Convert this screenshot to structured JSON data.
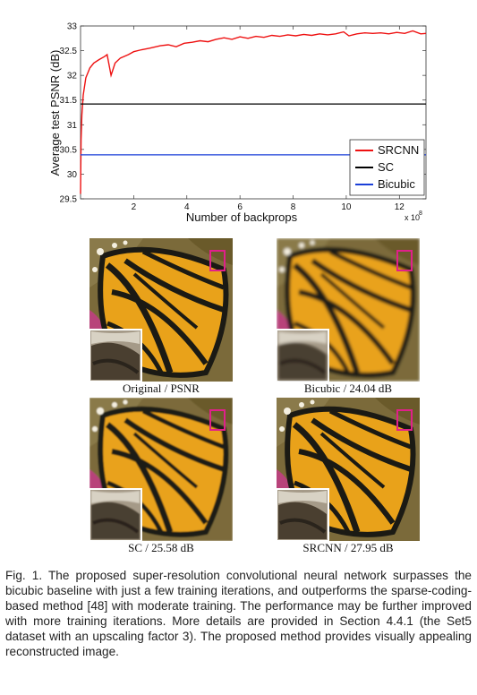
{
  "chart_data": {
    "type": "line",
    "title": "",
    "xlabel": "Number of backprops",
    "x_multiplier_label": "x 10",
    "x_multiplier_exp": "8",
    "ylabel": "Average test PSNR (dB)",
    "xlim": [
      0,
      13
    ],
    "ylim": [
      29.5,
      33
    ],
    "x_ticks": [
      "2",
      "4",
      "6",
      "8",
      "10",
      "12"
    ],
    "y_ticks": [
      "29.5",
      "30",
      "30.5",
      "31",
      "31.5",
      "32",
      "32.5",
      "33"
    ],
    "legend_position": "lower-right",
    "series": [
      {
        "name": "SRCNN",
        "color": "#ee1111",
        "x": [
          0,
          0.02,
          0.05,
          0.1,
          0.2,
          0.35,
          0.5,
          0.7,
          0.9,
          1.0,
          1.15,
          1.3,
          1.5,
          1.8,
          2.0,
          2.3,
          2.6,
          3.0,
          3.3,
          3.6,
          3.9,
          4.2,
          4.5,
          4.8,
          5.1,
          5.4,
          5.7,
          6.0,
          6.3,
          6.6,
          6.9,
          7.2,
          7.5,
          7.8,
          8.1,
          8.4,
          8.7,
          9.0,
          9.3,
          9.6,
          9.9,
          10.1,
          10.4,
          10.7,
          11.0,
          11.3,
          11.6,
          11.9,
          12.2,
          12.5,
          12.8,
          13.0
        ],
        "values": [
          29.6,
          30.7,
          31.2,
          31.6,
          31.95,
          32.15,
          32.25,
          32.32,
          32.38,
          32.42,
          32.0,
          32.25,
          32.35,
          32.42,
          32.48,
          32.52,
          32.55,
          32.6,
          32.62,
          32.58,
          32.65,
          32.67,
          32.7,
          32.68,
          32.73,
          32.76,
          32.73,
          32.78,
          32.75,
          32.79,
          32.77,
          32.81,
          32.79,
          32.82,
          32.8,
          32.83,
          32.81,
          32.84,
          32.82,
          32.84,
          32.88,
          32.8,
          32.84,
          32.86,
          32.85,
          32.86,
          32.84,
          32.87,
          32.85,
          32.9,
          32.84,
          32.85
        ]
      },
      {
        "name": "SC",
        "color": "#000000",
        "x": [
          0,
          13
        ],
        "values": [
          31.42,
          31.42
        ]
      },
      {
        "name": "Bicubic",
        "color": "#1a3fd8",
        "x": [
          0,
          13
        ],
        "values": [
          30.39,
          30.39
        ]
      }
    ]
  },
  "figures": [
    {
      "id": "original",
      "caption": "Original / PSNR",
      "sharpness": "sharp"
    },
    {
      "id": "bicubic",
      "caption": "Bicubic / 24.04 dB",
      "sharpness": "blurry"
    },
    {
      "id": "sc",
      "caption": "SC / 25.58 dB",
      "sharpness": "medium"
    },
    {
      "id": "srcnn",
      "caption": "SRCNN / 27.95 dB",
      "sharpness": "sharp"
    }
  ],
  "caption": {
    "text": "Fig. 1. The proposed super-resolution convolutional neural network surpasses the bicubic baseline with just a few training iterations, and outperforms the sparse-coding-based method [48] with moderate training. The performance may be further improved with more training iterations. More details are provided in Section 4.4.1 (the Set5 dataset with an upscaling factor 3). The proposed method provides visually appealing reconstructed image."
  }
}
